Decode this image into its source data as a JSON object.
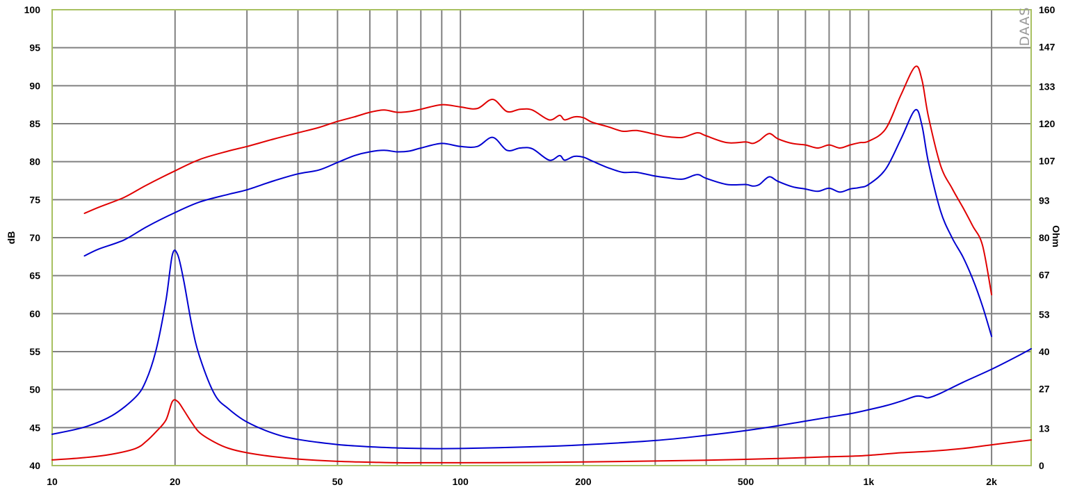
{
  "chart_data": {
    "type": "line",
    "title": "",
    "watermark": "DAAS",
    "xlabel": "",
    "ylabel_left": "dB",
    "ylabel_right": "Ohm",
    "x_scale": "log",
    "xlim": [
      10,
      2500
    ],
    "ylim_left": [
      40,
      100
    ],
    "ylim_right": [
      0,
      160
    ],
    "grid": true,
    "background_color": "#ffffff",
    "grid_color": "#808080",
    "frame_color": "#a8c060",
    "x_tick_labels": [
      {
        "value": 10,
        "label": "10"
      },
      {
        "value": 20,
        "label": "20"
      },
      {
        "value": 50,
        "label": "50"
      },
      {
        "value": 100,
        "label": "100"
      },
      {
        "value": 200,
        "label": "200"
      },
      {
        "value": 500,
        "label": "500"
      },
      {
        "value": 1000,
        "label": "1k"
      },
      {
        "value": 2000,
        "label": "2k"
      }
    ],
    "x_grid_values": [
      10,
      20,
      30,
      40,
      50,
      60,
      70,
      80,
      90,
      100,
      200,
      300,
      400,
      500,
      600,
      700,
      800,
      900,
      1000,
      2000
    ],
    "y_left_ticks": [
      {
        "value": 100,
        "label": "100"
      },
      {
        "value": 95,
        "label": "95"
      },
      {
        "value": 90,
        "label": "90"
      },
      {
        "value": 85,
        "label": "85"
      },
      {
        "value": 80,
        "label": "80"
      },
      {
        "value": 75,
        "label": "75"
      },
      {
        "value": 70,
        "label": "70"
      },
      {
        "value": 65,
        "label": "65"
      },
      {
        "value": 60,
        "label": "60"
      },
      {
        "value": 55,
        "label": "55"
      },
      {
        "value": 50,
        "label": "50"
      },
      {
        "value": 45,
        "label": "45"
      },
      {
        "value": 40,
        "label": "40"
      }
    ],
    "y_right_ticks": [
      {
        "value": 160,
        "label": "160"
      },
      {
        "value": 147,
        "label": "147"
      },
      {
        "value": 133,
        "label": "133"
      },
      {
        "value": 120,
        "label": "120"
      },
      {
        "value": 107,
        "label": "107"
      },
      {
        "value": 93,
        "label": "93"
      },
      {
        "value": 80,
        "label": "80"
      },
      {
        "value": 67,
        "label": "67"
      },
      {
        "value": 53,
        "label": "53"
      },
      {
        "value": 40,
        "label": "40"
      },
      {
        "value": 27,
        "label": "27"
      },
      {
        "value": 13,
        "label": "13"
      },
      {
        "value": 0,
        "label": "0"
      }
    ],
    "series": [
      {
        "id": "spl-red",
        "color": "#e00000",
        "axis": "left",
        "x": [
          12,
          13,
          15,
          17,
          20,
          23,
          27,
          30,
          35,
          40,
          45,
          50,
          55,
          60,
          65,
          70,
          75,
          80,
          90,
          100,
          110,
          120,
          130,
          140,
          150,
          165,
          175,
          180,
          190,
          200,
          210,
          230,
          250,
          270,
          300,
          320,
          350,
          380,
          400,
          450,
          500,
          520,
          540,
          570,
          600,
          650,
          700,
          750,
          800,
          850,
          900,
          950,
          1000,
          1100,
          1200,
          1300,
          1350,
          1400,
          1500,
          1600,
          1700,
          1800,
          1900,
          2000
        ],
        "y": [
          73.2,
          74.0,
          75.3,
          76.9,
          78.8,
          80.3,
          81.4,
          82.0,
          83.0,
          83.8,
          84.5,
          85.3,
          85.9,
          86.5,
          86.8,
          86.5,
          86.6,
          86.9,
          87.5,
          87.2,
          87.0,
          88.2,
          86.6,
          86.9,
          86.8,
          85.5,
          86.1,
          85.5,
          85.9,
          85.8,
          85.2,
          84.6,
          84.0,
          84.1,
          83.6,
          83.3,
          83.2,
          83.8,
          83.4,
          82.5,
          82.6,
          82.4,
          82.8,
          83.7,
          83.0,
          82.4,
          82.2,
          81.8,
          82.2,
          81.8,
          82.2,
          82.5,
          82.7,
          84.3,
          88.8,
          92.5,
          90.8,
          86.0,
          79.5,
          76.5,
          74.0,
          71.5,
          69.0,
          62.5
        ]
      },
      {
        "id": "spl-blue",
        "color": "#0000d0",
        "axis": "left",
        "x": [
          12,
          13,
          15,
          17,
          20,
          23,
          27,
          30,
          35,
          40,
          45,
          50,
          55,
          60,
          65,
          70,
          75,
          80,
          90,
          100,
          110,
          120,
          130,
          140,
          150,
          165,
          175,
          180,
          190,
          200,
          210,
          230,
          250,
          270,
          300,
          320,
          350,
          380,
          400,
          450,
          500,
          520,
          540,
          570,
          600,
          650,
          700,
          750,
          800,
          850,
          900,
          950,
          1000,
          1100,
          1200,
          1300,
          1350,
          1400,
          1500,
          1600,
          1700,
          1800,
          1900,
          2000
        ],
        "y": [
          67.6,
          68.5,
          69.7,
          71.4,
          73.3,
          74.7,
          75.7,
          76.3,
          77.5,
          78.4,
          78.9,
          79.9,
          80.8,
          81.3,
          81.5,
          81.3,
          81.4,
          81.8,
          82.4,
          82.0,
          82.0,
          83.2,
          81.5,
          81.8,
          81.7,
          80.2,
          80.8,
          80.2,
          80.7,
          80.6,
          80.1,
          79.2,
          78.6,
          78.6,
          78.1,
          77.9,
          77.7,
          78.3,
          77.8,
          77.0,
          77.0,
          76.8,
          77.0,
          78.0,
          77.4,
          76.7,
          76.4,
          76.1,
          76.5,
          76.0,
          76.4,
          76.6,
          77.0,
          79.0,
          83.0,
          86.8,
          84.8,
          80.0,
          73.5,
          70.0,
          67.5,
          64.5,
          61.0,
          57.0
        ]
      },
      {
        "id": "impedance-blue",
        "color": "#0000d0",
        "axis": "right",
        "x": [
          10,
          12,
          14,
          16,
          17,
          18,
          19,
          19.7,
          20.3,
          21,
          22,
          23,
          25,
          27,
          30,
          35,
          40,
          50,
          60,
          70,
          80,
          100,
          150,
          200,
          300,
          400,
          500,
          600,
          700,
          800,
          900,
          1000,
          1100,
          1200,
          1300,
          1350,
          1400,
          1500,
          1700,
          2000,
          2300,
          2500
        ],
        "y": [
          11,
          13.5,
          17.5,
          24,
          30,
          41,
          58,
          74,
          74,
          65,
          49,
          38,
          25,
          20,
          15.3,
          11.2,
          9.2,
          7.4,
          6.6,
          6.2,
          6.0,
          6.0,
          6.6,
          7.3,
          8.8,
          10.6,
          12.3,
          14.0,
          15.6,
          17.0,
          18.2,
          19.6,
          21.0,
          22.6,
          24.3,
          24.3,
          23.8,
          25.4,
          29.2,
          33.8,
          38.2,
          41.0
        ]
      },
      {
        "id": "impedance-red",
        "color": "#e00000",
        "axis": "right",
        "x": [
          10,
          12,
          14,
          16,
          17,
          18,
          19,
          19.7,
          20.3,
          21,
          22,
          23,
          25,
          27,
          30,
          35,
          40,
          50,
          60,
          70,
          80,
          100,
          150,
          200,
          300,
          400,
          500,
          600,
          700,
          800,
          900,
          1000,
          1200,
          1400,
          1700,
          2000,
          2500
        ],
        "y": [
          2.0,
          2.8,
          4.0,
          6.0,
          8.5,
          12,
          16,
          22.5,
          22.5,
          19.5,
          15,
          11.5,
          8.2,
          6.1,
          4.5,
          3.1,
          2.3,
          1.5,
          1.2,
          1.0,
          1.0,
          1.0,
          1.1,
          1.3,
          1.6,
          1.9,
          2.2,
          2.5,
          2.8,
          3.1,
          3.3,
          3.6,
          4.5,
          5.0,
          6.0,
          7.3,
          9.0
        ]
      }
    ]
  }
}
